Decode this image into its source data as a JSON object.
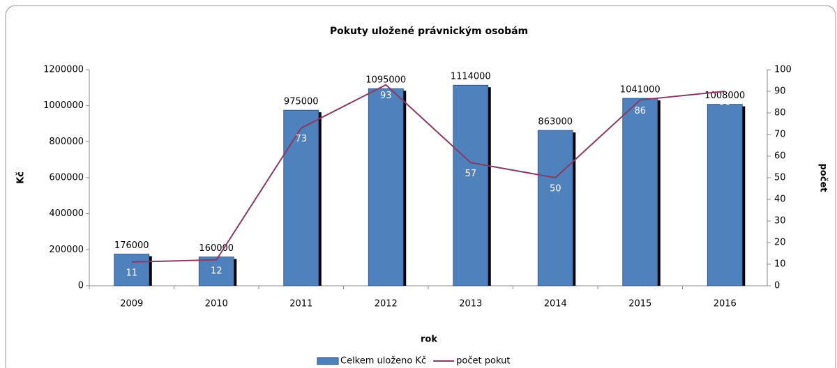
{
  "chart_data": {
    "type": "bar",
    "title": "Pokuty uložené právnickým osobám",
    "x_label": "rok",
    "y_label": "Kč",
    "y2_label": "počet",
    "categories": [
      "2009",
      "2010",
      "2011",
      "2012",
      "2013",
      "2014",
      "2015",
      "2016"
    ],
    "series": [
      {
        "name": "Celkem uloženo Kč",
        "type": "bar",
        "color": "#4f81bd",
        "values": [
          176000,
          160000,
          975000,
          1095000,
          1114000,
          863000,
          1041000,
          1008000
        ]
      },
      {
        "name": "počet pokut",
        "type": "line",
        "axis": "y2",
        "color": "#8b3a62",
        "values": [
          11,
          12,
          73,
          93,
          57,
          50,
          86,
          90
        ]
      }
    ],
    "ylim": [
      0,
      1200000
    ],
    "yticks": [
      0,
      200000,
      400000,
      600000,
      800000,
      1000000,
      1200000
    ],
    "y2lim": [
      0,
      100
    ],
    "y2ticks": [
      0,
      10,
      20,
      30,
      40,
      50,
      60,
      70,
      80,
      90,
      100
    ],
    "legend": "bottom"
  }
}
